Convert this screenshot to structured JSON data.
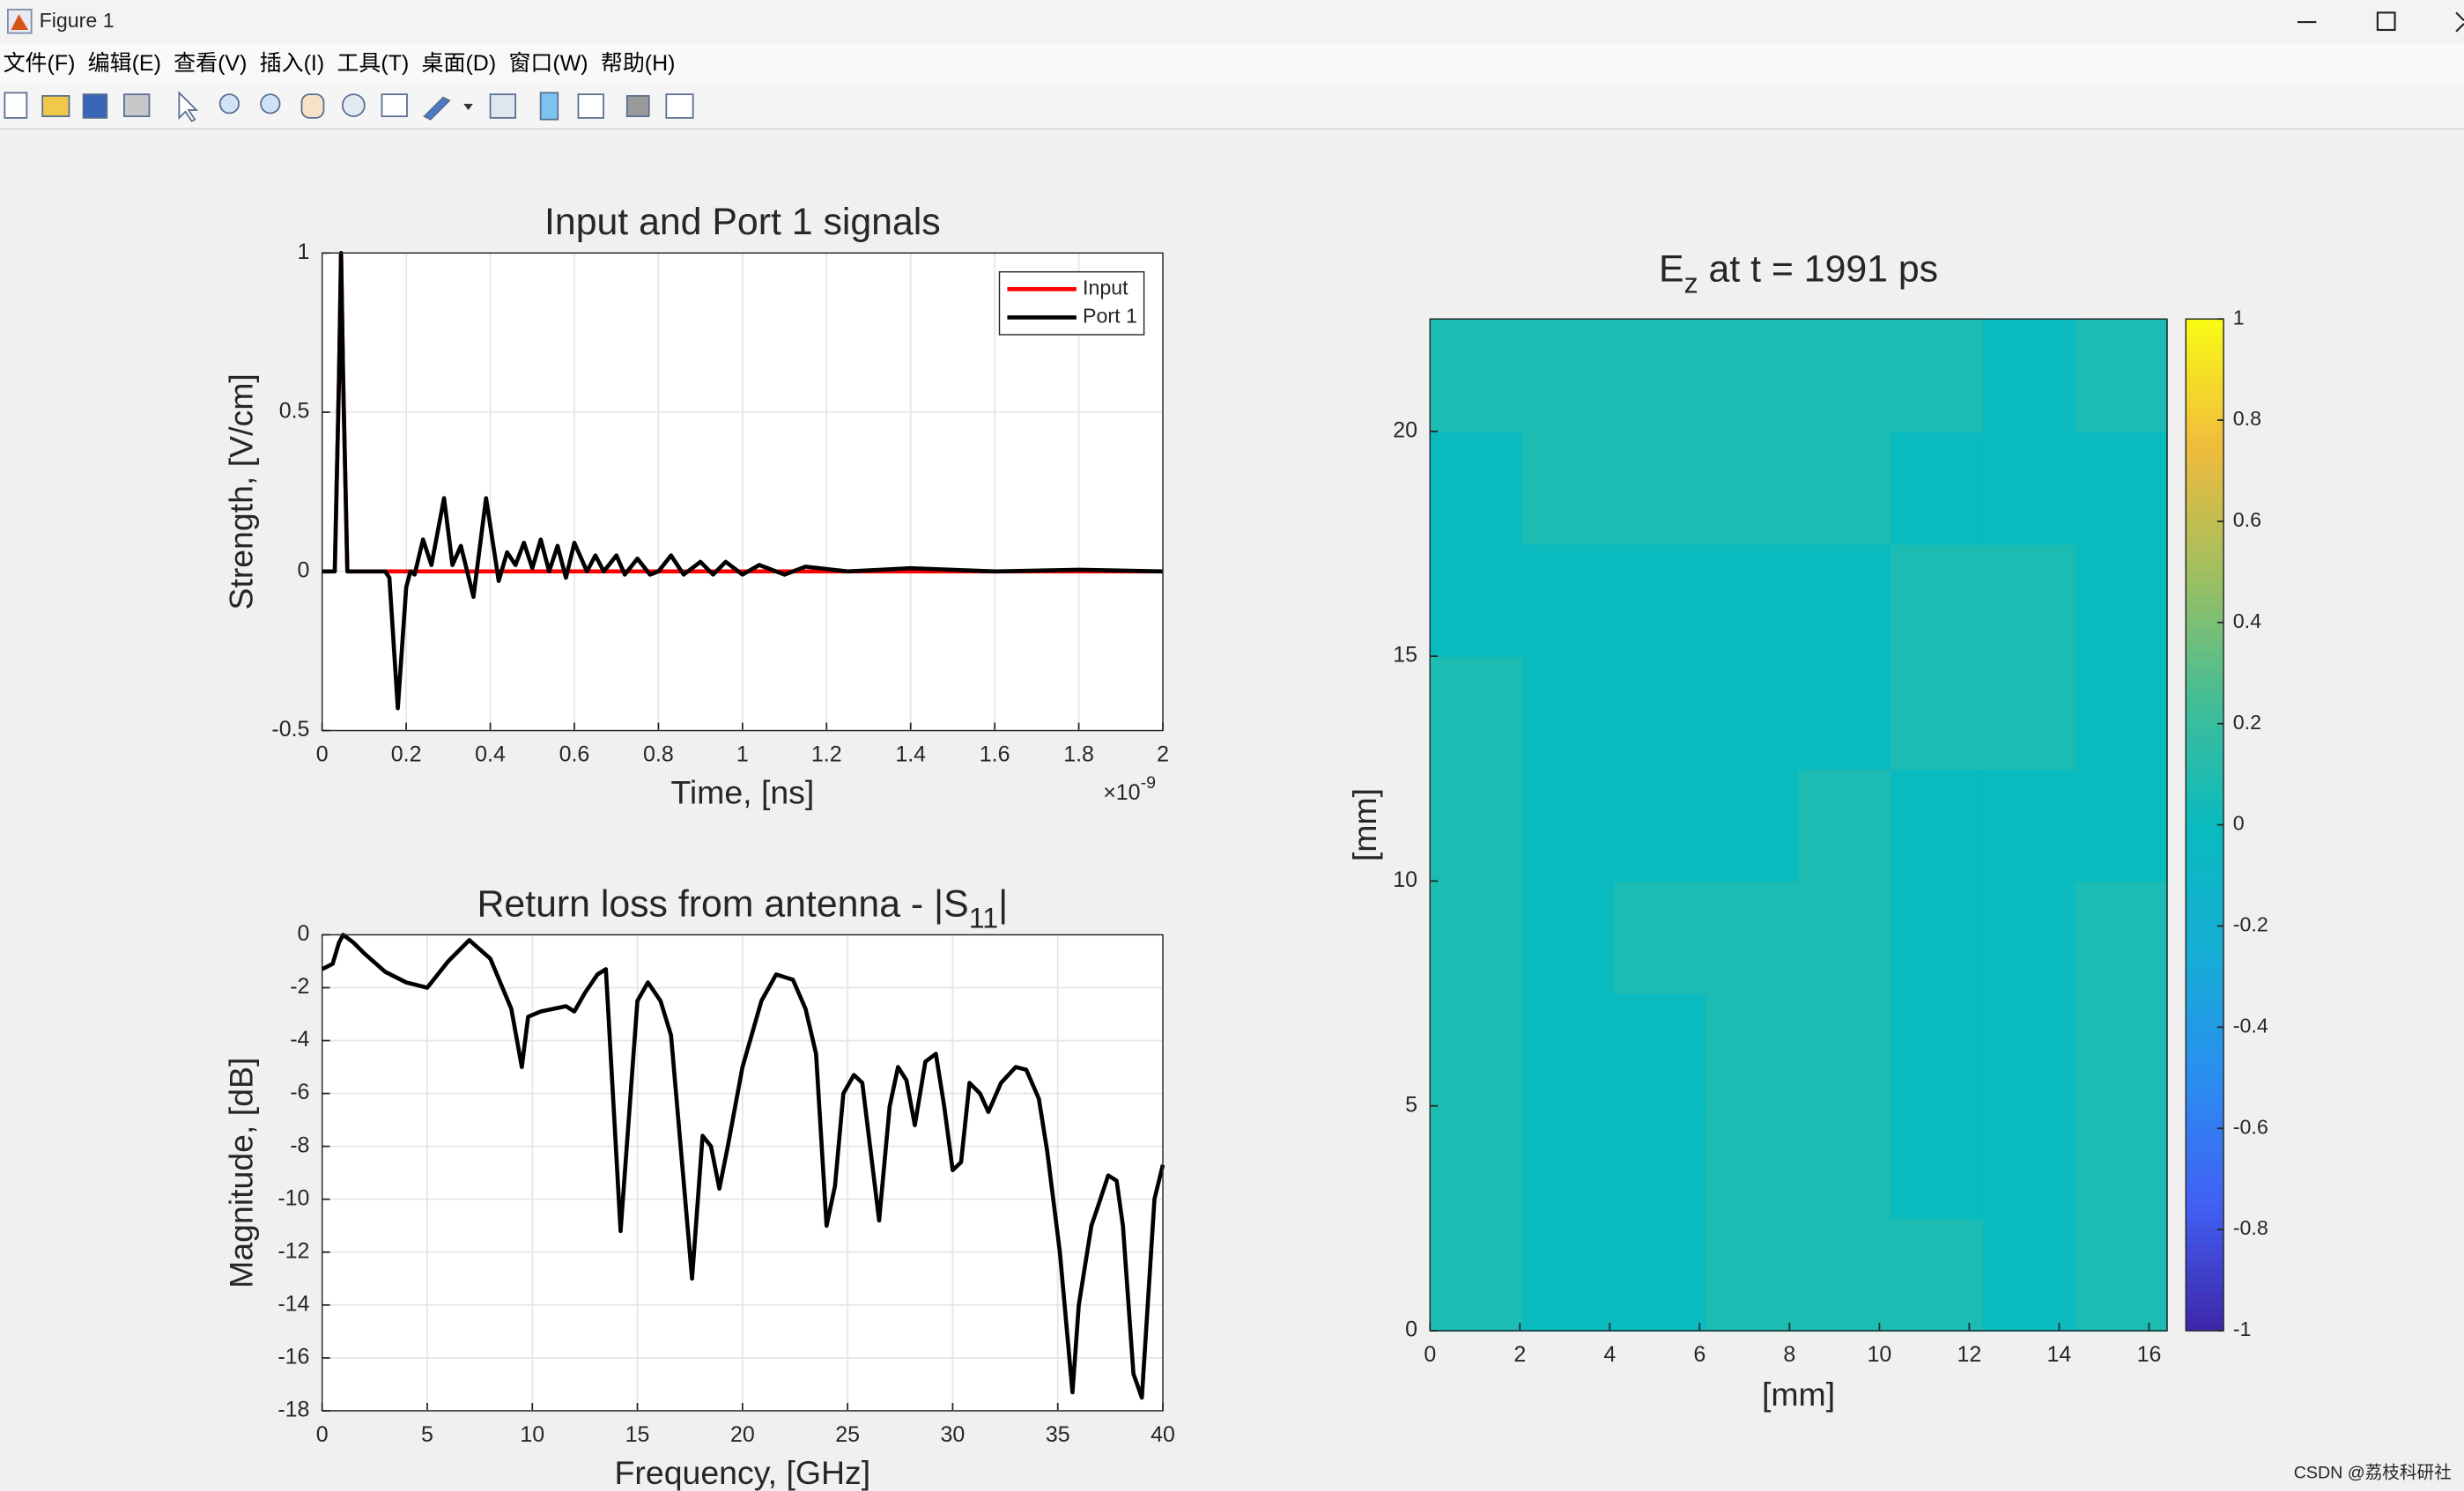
{
  "window": {
    "title": "Figure 1",
    "menus": [
      "文件(F)",
      "编辑(E)",
      "查看(V)",
      "插入(I)",
      "工具(T)",
      "桌面(D)",
      "窗口(W)",
      "帮助(H)"
    ],
    "watermark": "CSDN @荔枝科研社"
  },
  "chart_data": [
    {
      "type": "line",
      "title": "Input and Port 1 signals",
      "xlabel": "Time, [ns]",
      "ylabel": "Strength, [V/cm]",
      "xtick_multiplier": {
        "base": "×10",
        "exponent": "-9"
      },
      "x": [
        0,
        3e-11,
        4e-11,
        4.5e-11,
        5e-11,
        6e-11,
        1.5e-10,
        1.6e-10,
        1.8e-10,
        2e-10,
        2.1e-10,
        2.2e-10,
        2.4e-10,
        2.6e-10,
        2.9e-10,
        3.1e-10,
        3.3e-10,
        3.6e-10,
        3.9e-10,
        4.2e-10,
        4.4e-10,
        4.6e-10,
        4.8e-10,
        5e-10,
        5.2e-10,
        5.4e-10,
        5.6e-10,
        5.8e-10,
        6e-10,
        6.3e-10,
        6.5e-10,
        6.7e-10,
        7e-10,
        7.2e-10,
        7.5e-10,
        7.8e-10,
        8e-10,
        8.3e-10,
        8.6e-10,
        9e-10,
        9.3e-10,
        9.6e-10,
        1e-09,
        1.04e-09,
        1.1e-09,
        1.15e-09,
        1.25e-09,
        1.4e-09,
        1.6e-09,
        1.8e-09,
        2e-09
      ],
      "series": [
        {
          "name": "Input",
          "color": "#ff0000",
          "values": [
            0,
            0,
            0.6,
            1,
            0.6,
            0,
            0,
            0,
            0,
            0,
            0,
            0,
            0,
            0,
            0,
            0,
            0,
            0,
            0,
            0,
            0,
            0,
            0,
            0,
            0,
            0,
            0,
            0,
            0,
            0,
            0,
            0,
            0,
            0,
            0,
            0,
            0,
            0,
            0,
            0,
            0,
            0,
            0,
            0,
            0,
            0,
            0,
            0,
            0,
            0,
            0
          ]
        },
        {
          "name": "Port 1",
          "color": "#000000",
          "values": [
            0,
            0,
            0.6,
            1,
            0.6,
            0,
            0,
            -0.02,
            -0.43,
            -0.05,
            0,
            -0.01,
            0.1,
            0.02,
            0.23,
            0.02,
            0.08,
            -0.08,
            0.23,
            -0.03,
            0.06,
            0.02,
            0.09,
            0.01,
            0.1,
            0,
            0.08,
            -0.02,
            0.09,
            0,
            0.05,
            0,
            0.05,
            -0.01,
            0.04,
            -0.01,
            0,
            0.05,
            -0.01,
            0.03,
            -0.01,
            0.03,
            -0.01,
            0.02,
            -0.01,
            0.015,
            0,
            0.01,
            0,
            0.005,
            0
          ]
        }
      ],
      "xlim": [
        0,
        2e-09
      ],
      "xticks": [
        0,
        {
          "value": 2e-10,
          "label": "0.2"
        },
        {
          "value": 4e-10,
          "label": "0.4"
        },
        {
          "value": 6e-10,
          "label": "0.6"
        },
        {
          "value": 8e-10,
          "label": "0.8"
        },
        {
          "value": 1e-09,
          "label": "1"
        },
        {
          "value": 1.2e-09,
          "label": "1.2"
        },
        {
          "value": 1.4e-09,
          "label": "1.4"
        },
        {
          "value": 1.6e-09,
          "label": "1.6"
        },
        {
          "value": 1.8e-09,
          "label": "1.8"
        },
        {
          "value": 2e-09,
          "label": "2"
        }
      ],
      "ylim": [
        -0.5,
        1
      ],
      "yticks": [
        -0.5,
        0,
        0.5,
        1
      ],
      "grid": true,
      "legend": "northeast"
    },
    {
      "type": "line",
      "title": "Return loss from antenna - |S",
      "title_subscript": "11",
      "title_suffix": "|",
      "xlabel": "Frequency, [GHz]",
      "ylabel": "Magnitude, [dB]",
      "x": [
        0,
        0.5,
        0.8,
        1,
        1.5,
        2,
        3,
        4,
        5,
        6,
        7,
        8,
        9,
        9.5,
        9.8,
        10.4,
        11.6,
        12,
        12.5,
        13.1,
        13.5,
        14.2,
        15,
        15.5,
        16.1,
        16.6,
        17.6,
        18.1,
        18.5,
        18.9,
        19.3,
        20,
        20.9,
        21.6,
        22.4,
        23,
        23.5,
        24,
        24.4,
        24.8,
        25.3,
        25.7,
        26.5,
        27,
        27.4,
        27.8,
        28.2,
        28.7,
        29.2,
        29.6,
        30,
        30.4,
        30.8,
        31.3,
        31.7,
        32.3,
        33,
        33.5,
        34.1,
        34.5,
        35.1,
        35.7,
        36,
        36.6,
        36.9,
        37.4,
        37.8,
        38.1,
        38.6,
        39,
        39.6,
        40
      ],
      "values": [
        -1.3,
        -1.1,
        -0.3,
        0,
        -0.3,
        -0.7,
        -1.4,
        -1.8,
        -2.0,
        -1.0,
        -0.2,
        -0.9,
        -2.8,
        -5,
        -3.1,
        -2.9,
        -2.7,
        -2.9,
        -2.2,
        -1.5,
        -1.3,
        -11.2,
        -2.5,
        -1.8,
        -2.5,
        -3.8,
        -13,
        -7.6,
        -8,
        -9.6,
        -8,
        -5,
        -2.5,
        -1.5,
        -1.7,
        -2.8,
        -4.5,
        -11,
        -9.5,
        -6,
        -5.3,
        -5.6,
        -10.8,
        -6.5,
        -5,
        -5.5,
        -7.2,
        -4.8,
        -4.5,
        -6.5,
        -8.9,
        -8.6,
        -5.6,
        -6,
        -6.7,
        -5.6,
        -5,
        -5.1,
        -6.2,
        -8.2,
        -12,
        -17.3,
        -14,
        -11,
        -10.3,
        -9.1,
        -9.3,
        -11,
        -16.6,
        -17.5,
        -10,
        -8.7
      ],
      "color": "#000000",
      "xlim": [
        0,
        40
      ],
      "xticks": [
        0,
        5,
        10,
        15,
        20,
        25,
        30,
        35,
        40
      ],
      "ylim": [
        -18,
        0
      ],
      "yticks": [
        -18,
        -16,
        -14,
        -12,
        -10,
        -8,
        -6,
        -4,
        -2,
        0
      ],
      "grid": true
    },
    {
      "type": "heatmap",
      "title": "E",
      "title_subscript": "z",
      "title_suffix": " at t = 1991 ps",
      "xlabel": "[mm]",
      "ylabel": "[mm]",
      "origin": "lower",
      "z": [
        [
          0.08,
          0,
          0,
          0.08,
          0.08,
          0.08,
          0,
          0.08
        ],
        [
          0.08,
          0,
          0,
          0.08,
          0.08,
          0,
          0,
          0.08
        ],
        [
          0.08,
          0,
          0,
          0.08,
          0.08,
          0,
          0,
          0.08
        ],
        [
          0.08,
          0,
          0.08,
          0.08,
          0.08,
          0,
          0,
          0.08
        ],
        [
          0.08,
          0,
          0,
          0,
          0.08,
          0,
          0,
          0
        ],
        [
          0.08,
          0,
          0,
          0,
          0,
          0.08,
          0.08,
          0
        ],
        [
          0,
          0,
          0,
          0,
          0,
          0.08,
          0.08,
          0
        ],
        [
          0,
          0.08,
          0.08,
          0.08,
          0.08,
          0,
          0,
          0
        ],
        [
          0.08,
          0.08,
          0.08,
          0.08,
          0.08,
          0.08,
          0,
          0.08
        ]
      ],
      "xlim": [
        0,
        16.4
      ],
      "xticks": [
        0,
        2,
        4,
        6,
        8,
        10,
        12,
        14,
        16
      ],
      "ylim": [
        0,
        22.5
      ],
      "yticks": [
        0,
        5,
        10,
        15,
        20
      ],
      "clim": [
        -1,
        1
      ],
      "cticks": [
        -1,
        -0.8,
        -0.6,
        -0.4,
        -0.2,
        0,
        0.2,
        0.4,
        0.6,
        0.8,
        1
      ],
      "colormap": [
        "#3e26a8",
        "#4160f3",
        "#2a8ef0",
        "#16aed4",
        "#09bbbf",
        "#44bd96",
        "#a0bf5f",
        "#f0bb3c",
        "#f9fb15"
      ]
    }
  ]
}
